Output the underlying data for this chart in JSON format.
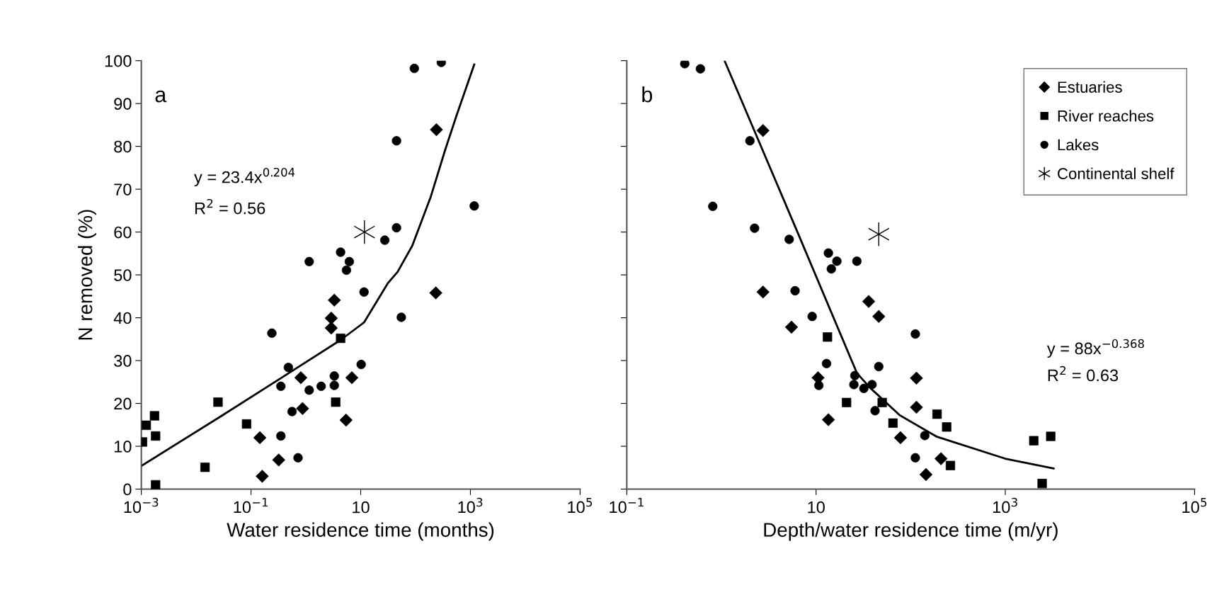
{
  "chart_data": [
    {
      "type": "scatter",
      "xlabel": "Water residence time (months)",
      "ylabel": "N removed (%)",
      "log": "x",
      "legend": false,
      "grid": false,
      "tick_labels": "xy",
      "xlim": [
        0.001,
        100000
      ],
      "xticks": [
        {
          "value": 0.001,
          "label": "10$^{−3}$"
        },
        {
          "value": 0.1,
          "label": "10$^{−1}$"
        },
        {
          "value": 10,
          "label": "10"
        },
        {
          "value": 1000,
          "label": "10$^{3}$"
        },
        {
          "value": 100000,
          "label": "10$^{5}$"
        }
      ],
      "ylim": [
        0,
        100
      ],
      "yticks": [
        0,
        10,
        20,
        30,
        40,
        50,
        60,
        70,
        80,
        90,
        100
      ],
      "annotations": [
        "a",
        "y = 23.4x$^{0.204}$",
        "R$^{2}$ = 0.56"
      ],
      "series": [
        {
          "color": "#000000",
          "marker": "diamond",
          "x": [
            0.16,
            0.145,
            0.32,
            0.81,
            0.87,
            3.3,
            2.9,
            2.9,
            5.4,
            6.9,
            240,
            234
          ],
          "values": [
            3.0,
            12.0,
            6.8,
            26.0,
            18.8,
            44.1,
            39.9,
            37.6,
            16.1,
            26.0,
            83.9,
            45.8
          ]
        },
        {
          "color": "#000000",
          "marker": "square",
          "x": [
            0.00105,
            0.00123,
            0.00174,
            0.00182,
            0.00182,
            0.0145,
            0.025,
            0.083,
            3.5,
            4.3
          ],
          "values": [
            11.0,
            14.9,
            17.1,
            12.4,
            1.0,
            5.1,
            20.3,
            15.2,
            20.3,
            35.2
          ]
        },
        {
          "color": "#000000",
          "marker": "circle",
          "x": [
            95,
            295,
            45,
            1175,
            45,
            27.5,
            4.3,
            6.2,
            5.5,
            1.15,
            11.5,
            55,
            0.24,
            0.48,
            10.2,
            3.3,
            3.3,
            1.9,
            0.35,
            1.15,
            0.56,
            0.35,
            0.72
          ],
          "values": [
            98.2,
            99.6,
            81.3,
            66.1,
            61.0,
            58.1,
            55.3,
            53.1,
            51.1,
            53.1,
            46.0,
            40.1,
            36.4,
            28.4,
            29.1,
            26.4,
            24.2,
            24.0,
            24.0,
            23.1,
            18.1,
            12.4,
            7.3
          ]
        },
        {
          "color": "#000000",
          "marker": "cross",
          "x": [
            11.7
          ],
          "values": [
            60
          ]
        },
        {
          "type": "line",
          "color": "#000000",
          "marker": "none",
          "line_style": "solid",
          "x": [
            0.001,
            0.0275,
            0.35,
            4.3,
            11.5,
            31,
            47,
            87,
            190,
            347,
            562,
            1175
          ],
          "values": [
            5.4,
            16.9,
            25.9,
            34.8,
            38.9,
            48.0,
            50.7,
            56.8,
            68.3,
            79.2,
            87.3,
            99.1
          ]
        }
      ]
    },
    {
      "type": "scatter",
      "xlabel": "Depth/water residence time (m/yr)",
      "log": "x",
      "legend": "top right",
      "grid": false,
      "tick_labels": "x",
      "xlim": [
        0.1,
        100000
      ],
      "xticks": [
        {
          "value": 0.1,
          "label": "10$^{−1}$"
        },
        {
          "value": 10,
          "label": "10"
        },
        {
          "value": 1000,
          "label": "10$^{3}$"
        },
        {
          "value": 100000,
          "label": "10$^{5}$"
        }
      ],
      "ylim": [
        0,
        100
      ],
      "yticks": [
        0,
        10,
        20,
        30,
        40,
        50,
        60,
        70,
        80,
        90,
        100
      ],
      "annotations": [
        "b",
        "y = 88x$^{−0.368}$",
        "R$^{2}$ = 0.63"
      ],
      "series": [
        {
          "name": "Estuaries",
          "color": "#000000",
          "marker": "diamond",
          "x": [
            2.75,
            2.75,
            5.5,
            10.5,
            13.5,
            36,
            46,
            115,
            115,
            78,
            209,
            145
          ],
          "values": [
            83.7,
            46.0,
            37.8,
            26.0,
            16.2,
            43.8,
            40.3,
            25.9,
            19.1,
            12.0,
            7.1,
            3.4
          ]
        },
        {
          "name": "River reaches",
          "color": "#000000",
          "marker": "square",
          "x": [
            13.2,
            21,
            50,
            65,
            190,
            240,
            263,
            2000,
            3020,
            2450
          ],
          "values": [
            35.5,
            20.2,
            20.2,
            15.4,
            17.5,
            14.5,
            5.5,
            11.3,
            12.3,
            1.3
          ]
        },
        {
          "name": "Lakes",
          "color": "#000000",
          "marker": "circle",
          "x": [
            0.41,
            0.6,
            2.0,
            0.81,
            2.24,
            5.2,
            6.0,
            9.1,
            13.5,
            16.6,
            14.5,
            27,
            112,
            12.9,
            46,
            25.7,
            25.1,
            10.7,
            32,
            39,
            42,
            141,
            112
          ],
          "values": [
            99.3,
            98.1,
            81.3,
            66.0,
            60.9,
            58.3,
            46.3,
            40.3,
            55.1,
            53.2,
            51.4,
            53.2,
            36.2,
            29.3,
            28.6,
            26.5,
            24.4,
            24.2,
            23.5,
            24.4,
            18.3,
            12.5,
            7.3
          ]
        },
        {
          "name": "Continental shelf",
          "color": "#000000",
          "marker": "cross",
          "x": [
            46
          ],
          "values": [
            59.5
          ]
        },
        {
          "type": "line",
          "color": "#000000",
          "marker": "none",
          "line_style": "solid",
          "x": [
            1.08,
            6.5,
            27,
            37,
            76,
            190,
            1000,
            3240
          ],
          "values": [
            100,
            59.5,
            27.1,
            23.7,
            17.3,
            12.2,
            7.1,
            4.8
          ]
        }
      ]
    }
  ]
}
